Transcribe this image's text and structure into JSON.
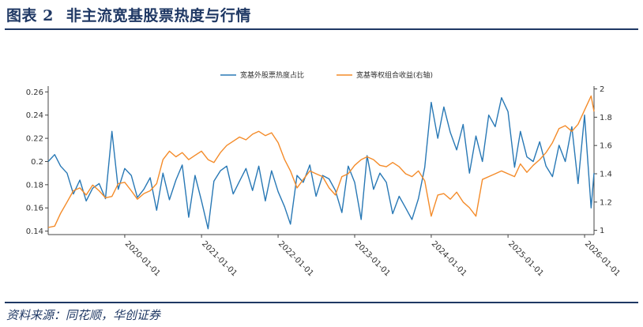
{
  "header": {
    "figure_no": "图表 2",
    "title": "非主流宽基股票热度与行情"
  },
  "footer": {
    "source": "资料来源：同花顺，华创证券"
  },
  "colors": {
    "series_left": "#2878b5",
    "series_right": "#f48b29",
    "brand": "#1f3864"
  },
  "chart_data": {
    "type": "line",
    "title": "",
    "legend_position": "top-center",
    "grid": false,
    "x_range": [
      "2019-01-01",
      "2026-02-15"
    ],
    "x_ticks": [
      "2020-01-01",
      "2021-01-01",
      "2022-01-01",
      "2023-01-01",
      "2024-01-01",
      "2025-01-01",
      "2026-01-01"
    ],
    "y_left": {
      "ylim": [
        0.137,
        0.265
      ],
      "ticks": [
        0.14,
        0.16,
        0.18,
        0.2,
        0.22,
        0.24,
        0.26
      ],
      "tick_labels": [
        "0.14",
        "0.16",
        "0.18",
        "0.2",
        "0.22",
        "0.24",
        "0.26"
      ]
    },
    "y_right": {
      "ylim": [
        0.97,
        2.02
      ],
      "ticks": [
        1.0,
        1.2,
        1.4,
        1.6,
        1.8,
        2.0
      ],
      "tick_labels": [
        "1",
        "1.2",
        "1.4",
        "1.6",
        "1.8",
        "2"
      ]
    },
    "series": [
      {
        "name": "宽基外股票热度占比",
        "axis": "left",
        "x": [
          "2019-01-01",
          "2019-02-01",
          "2019-03-01",
          "2019-04-01",
          "2019-05-01",
          "2019-06-01",
          "2019-07-01",
          "2019-08-01",
          "2019-09-01",
          "2019-10-01",
          "2019-11-01",
          "2019-12-01",
          "2020-01-01",
          "2020-02-01",
          "2020-03-01",
          "2020-04-01",
          "2020-05-01",
          "2020-06-01",
          "2020-07-01",
          "2020-08-01",
          "2020-09-01",
          "2020-10-01",
          "2020-11-01",
          "2020-12-01",
          "2021-01-01",
          "2021-02-01",
          "2021-03-01",
          "2021-04-01",
          "2021-05-01",
          "2021-06-01",
          "2021-07-01",
          "2021-08-01",
          "2021-09-01",
          "2021-10-01",
          "2021-11-01",
          "2021-12-01",
          "2022-01-01",
          "2022-02-01",
          "2022-03-01",
          "2022-04-01",
          "2022-05-01",
          "2022-06-01",
          "2022-07-01",
          "2022-08-01",
          "2022-09-01",
          "2022-10-01",
          "2022-11-01",
          "2022-12-01",
          "2023-01-01",
          "2023-02-01",
          "2023-03-01",
          "2023-04-01",
          "2023-05-01",
          "2023-06-01",
          "2023-07-01",
          "2023-08-01",
          "2023-09-01",
          "2023-10-01",
          "2023-11-01",
          "2023-12-01",
          "2024-01-01",
          "2024-02-01",
          "2024-03-01",
          "2024-04-01",
          "2024-05-01",
          "2024-06-01",
          "2024-07-01",
          "2024-08-01",
          "2024-09-01",
          "2024-10-01",
          "2024-11-01",
          "2024-12-01",
          "2025-01-01",
          "2025-02-01",
          "2025-03-01",
          "2025-04-01",
          "2025-05-01",
          "2025-06-01",
          "2025-07-01",
          "2025-08-01",
          "2025-09-01",
          "2025-10-01",
          "2025-11-01",
          "2025-12-01",
          "2026-01-01",
          "2026-02-01",
          "2026-02-15"
        ],
        "values": [
          0.2,
          0.206,
          0.196,
          0.19,
          0.172,
          0.184,
          0.166,
          0.177,
          0.181,
          0.168,
          0.226,
          0.176,
          0.194,
          0.188,
          0.169,
          0.176,
          0.186,
          0.158,
          0.19,
          0.167,
          0.184,
          0.197,
          0.152,
          0.188,
          0.166,
          0.142,
          0.183,
          0.192,
          0.196,
          0.172,
          0.183,
          0.194,
          0.175,
          0.196,
          0.166,
          0.192,
          0.174,
          0.161,
          0.146,
          0.188,
          0.182,
          0.197,
          0.17,
          0.188,
          0.185,
          0.175,
          0.156,
          0.196,
          0.182,
          0.15,
          0.205,
          0.176,
          0.19,
          0.182,
          0.155,
          0.17,
          0.16,
          0.15,
          0.168,
          0.195,
          0.251,
          0.22,
          0.247,
          0.225,
          0.21,
          0.232,
          0.19,
          0.222,
          0.2,
          0.24,
          0.23,
          0.255,
          0.243,
          0.195,
          0.226,
          0.204,
          0.2,
          0.217,
          0.196,
          0.187,
          0.214,
          0.2,
          0.23,
          0.181,
          0.24,
          0.16,
          0.19
        ],
        "color": "#2878b5"
      },
      {
        "name": "宽基等权组合收益(右轴)",
        "axis": "right",
        "x": [
          "2019-01-01",
          "2019-02-01",
          "2019-03-01",
          "2019-04-01",
          "2019-05-01",
          "2019-06-01",
          "2019-07-01",
          "2019-08-01",
          "2019-09-01",
          "2019-10-01",
          "2019-11-01",
          "2019-12-01",
          "2020-01-01",
          "2020-02-01",
          "2020-03-01",
          "2020-04-01",
          "2020-05-01",
          "2020-06-01",
          "2020-07-01",
          "2020-08-01",
          "2020-09-01",
          "2020-10-01",
          "2020-11-01",
          "2020-12-01",
          "2021-01-01",
          "2021-02-01",
          "2021-03-01",
          "2021-04-01",
          "2021-05-01",
          "2021-06-01",
          "2021-07-01",
          "2021-08-01",
          "2021-09-01",
          "2021-10-01",
          "2021-11-01",
          "2021-12-01",
          "2022-01-01",
          "2022-02-01",
          "2022-03-01",
          "2022-04-01",
          "2022-05-01",
          "2022-06-01",
          "2022-07-01",
          "2022-08-01",
          "2022-09-01",
          "2022-10-01",
          "2022-11-01",
          "2022-12-01",
          "2023-01-01",
          "2023-02-01",
          "2023-03-01",
          "2023-04-01",
          "2023-05-01",
          "2023-06-01",
          "2023-07-01",
          "2023-08-01",
          "2023-09-01",
          "2023-10-01",
          "2023-11-01",
          "2023-12-01",
          "2024-01-01",
          "2024-02-01",
          "2024-03-01",
          "2024-04-01",
          "2024-05-01",
          "2024-06-01",
          "2024-07-01",
          "2024-08-01",
          "2024-09-01",
          "2024-10-01",
          "2024-11-01",
          "2024-12-01",
          "2025-01-01",
          "2025-02-01",
          "2025-03-01",
          "2025-04-01",
          "2025-05-01",
          "2025-06-01",
          "2025-07-01",
          "2025-08-01",
          "2025-09-01",
          "2025-10-01",
          "2025-11-01",
          "2025-12-01",
          "2026-01-01",
          "2026-02-01",
          "2026-02-15"
        ],
        "values": [
          1.02,
          1.03,
          1.12,
          1.2,
          1.28,
          1.3,
          1.25,
          1.32,
          1.28,
          1.23,
          1.24,
          1.33,
          1.34,
          1.28,
          1.22,
          1.26,
          1.28,
          1.33,
          1.5,
          1.56,
          1.52,
          1.55,
          1.5,
          1.53,
          1.56,
          1.5,
          1.48,
          1.55,
          1.6,
          1.63,
          1.66,
          1.64,
          1.68,
          1.7,
          1.67,
          1.69,
          1.62,
          1.5,
          1.42,
          1.3,
          1.36,
          1.42,
          1.4,
          1.38,
          1.3,
          1.25,
          1.38,
          1.4,
          1.46,
          1.5,
          1.52,
          1.5,
          1.46,
          1.45,
          1.48,
          1.45,
          1.4,
          1.38,
          1.42,
          1.35,
          1.1,
          1.25,
          1.26,
          1.22,
          1.27,
          1.2,
          1.16,
          1.1,
          1.36,
          1.38,
          1.4,
          1.42,
          1.4,
          1.38,
          1.47,
          1.41,
          1.46,
          1.5,
          1.55,
          1.62,
          1.72,
          1.74,
          1.7,
          1.75,
          1.85,
          1.95,
          1.84
        ],
        "color": "#f48b29"
      }
    ]
  }
}
